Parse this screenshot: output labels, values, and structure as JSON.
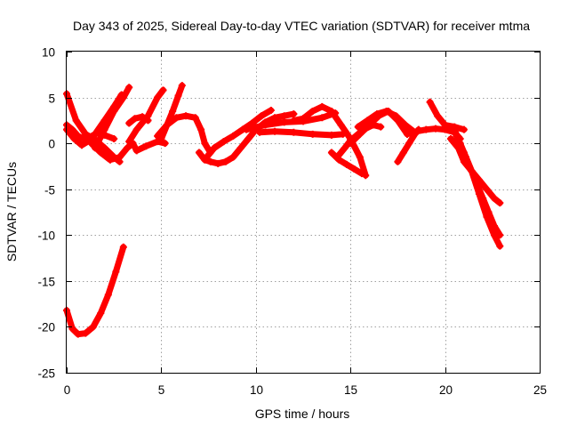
{
  "chart_data": {
    "type": "scatter",
    "title": "Day 343 of 2025, Sidereal Day-to-day VTEC variation (SDTVAR) for receiver mtma",
    "xlabel": "GPS time / hours",
    "ylabel": "SDTVAR / TECUs",
    "xlim": [
      0,
      25
    ],
    "ylim": [
      -25,
      10
    ],
    "xticks": [
      0,
      5,
      10,
      15,
      20,
      25
    ],
    "yticks": [
      -25,
      -20,
      -15,
      -10,
      -5,
      0,
      5,
      10
    ],
    "x_tick_labels": [
      "0",
      "5",
      "10",
      "15",
      "20",
      "25"
    ],
    "y_tick_labels": [
      "-25",
      "-20",
      "-15",
      "-10",
      "-5",
      "0",
      "5",
      "10"
    ],
    "grid": true,
    "marker_color": "#ff0000",
    "series": [
      {
        "name": "arc-1",
        "x": [
          0.0,
          0.5,
          1.0,
          1.5,
          2.0,
          2.5,
          2.8
        ],
        "y": [
          5.4,
          2.5,
          1.0,
          0.4,
          -0.5,
          -1.5,
          -2.0
        ]
      },
      {
        "name": "arc-2",
        "x": [
          0.0,
          0.3,
          0.6,
          1.0,
          1.5,
          2.0,
          2.5,
          2.9
        ],
        "y": [
          2.0,
          1.5,
          0.8,
          0.4,
          1.0,
          2.5,
          4.0,
          5.3
        ]
      },
      {
        "name": "arc-3",
        "x": [
          0.0,
          0.4,
          0.8,
          1.2,
          1.6,
          2.0,
          2.5
        ],
        "y": [
          1.5,
          0.5,
          -0.2,
          0.3,
          1.2,
          0.9,
          0.5
        ]
      },
      {
        "name": "arc-4",
        "x": [
          1.3,
          1.8,
          2.3,
          2.8,
          3.2,
          3.5,
          3.7,
          4.2,
          4.8,
          5.2
        ],
        "y": [
          0.0,
          -1.0,
          -1.8,
          -1.5,
          -0.5,
          0.0,
          -0.8,
          -0.3,
          0.2,
          0.0
        ]
      },
      {
        "name": "arc-5",
        "x": [
          1.5,
          2.0,
          2.5,
          3.0,
          3.3
        ],
        "y": [
          -0.5,
          1.5,
          3.5,
          5.0,
          6.1
        ]
      },
      {
        "name": "arc-6",
        "x": [
          3.3,
          3.7,
          4.3,
          4.8,
          5.1
        ],
        "y": [
          0.2,
          1.5,
          3.0,
          5.0,
          5.8
        ]
      },
      {
        "name": "arc-7",
        "x": [
          3.3,
          3.6,
          4.0,
          4.3
        ],
        "y": [
          2.2,
          2.7,
          2.9,
          2.5
        ]
      },
      {
        "name": "arc-8",
        "x": [
          5.0,
          5.3,
          5.6,
          5.9,
          6.1
        ],
        "y": [
          0.5,
          2.0,
          3.5,
          5.2,
          6.3
        ]
      },
      {
        "name": "arc-9",
        "x": [
          4.8,
          5.3,
          5.8,
          6.3,
          6.8,
          7.1,
          7.3,
          7.6
        ],
        "y": [
          0.8,
          2.0,
          2.8,
          3.0,
          2.8,
          1.5,
          0.0,
          -1.0
        ]
      },
      {
        "name": "arc-10",
        "x": [
          7.0,
          7.3,
          7.6,
          8.0,
          8.4,
          8.8,
          9.2,
          9.6,
          10.0,
          10.5,
          11.0,
          11.5,
          12.0
        ],
        "y": [
          -1.0,
          -1.8,
          -2.0,
          -2.2,
          -2.0,
          -1.5,
          -0.5,
          0.5,
          1.5,
          2.3,
          2.8,
          3.0,
          3.2
        ]
      },
      {
        "name": "arc-11",
        "x": [
          7.4,
          7.8,
          8.3,
          8.8,
          9.3,
          9.8,
          10.3,
          10.8
        ],
        "y": [
          -1.5,
          -0.5,
          0.2,
          0.8,
          1.5,
          2.2,
          3.0,
          3.6
        ]
      },
      {
        "name": "arc-12",
        "x": [
          9.5,
          10.5,
          11.5,
          12.5,
          13.5,
          14.2
        ],
        "y": [
          1.5,
          2.0,
          2.3,
          2.4,
          2.8,
          3.3
        ]
      },
      {
        "name": "arc-13",
        "x": [
          10.2,
          11.0,
          12.0,
          13.0,
          14.0,
          14.6
        ],
        "y": [
          1.2,
          1.3,
          1.2,
          1.0,
          0.9,
          1.0
        ]
      },
      {
        "name": "arc-14",
        "x": [
          12.0,
          12.5,
          13.0,
          13.5,
          14.0,
          14.5,
          15.0,
          15.5,
          15.8
        ],
        "y": [
          2.5,
          2.7,
          3.5,
          4.0,
          3.5,
          2.0,
          0.5,
          -1.5,
          -3.5
        ]
      },
      {
        "name": "arc-15",
        "x": [
          14.0,
          14.4,
          14.8,
          15.2,
          15.6
        ],
        "y": [
          -1.0,
          -1.8,
          -2.3,
          -2.8,
          -3.3
        ]
      },
      {
        "name": "arc-16",
        "x": [
          14.3,
          14.7,
          15.0,
          15.4,
          15.8,
          16.2,
          16.6
        ],
        "y": [
          -1.5,
          -0.5,
          0.3,
          1.0,
          1.6,
          2.0,
          1.8
        ]
      },
      {
        "name": "arc-17",
        "x": [
          15.0,
          15.5,
          16.0,
          16.5,
          17.0,
          17.5,
          18.0
        ],
        "y": [
          0.0,
          1.0,
          2.0,
          3.0,
          3.5,
          2.5,
          1.0
        ]
      },
      {
        "name": "arc-18",
        "x": [
          15.4,
          15.9,
          16.4,
          16.9,
          17.4,
          17.9,
          18.4
        ],
        "y": [
          1.8,
          2.5,
          3.2,
          3.5,
          3.0,
          2.0,
          1.2
        ]
      },
      {
        "name": "arc-19",
        "x": [
          17.5,
          17.8,
          18.1,
          18.4,
          18.6
        ],
        "y": [
          -2.0,
          -1.0,
          0.0,
          1.0,
          1.5
        ]
      },
      {
        "name": "arc-20",
        "x": [
          18.0,
          18.5,
          19.0,
          19.5,
          20.0,
          20.5,
          20.8
        ],
        "y": [
          1.0,
          1.3,
          1.5,
          1.6,
          1.5,
          1.2,
          0.5
        ]
      },
      {
        "name": "arc-21",
        "x": [
          19.2,
          19.6,
          20.0,
          20.5,
          21.0
        ],
        "y": [
          4.5,
          3.0,
          2.0,
          1.8,
          1.5
        ]
      },
      {
        "name": "arc-22",
        "x": [
          20.3,
          20.7,
          21.0,
          21.4,
          21.8,
          22.2,
          22.6,
          22.9
        ],
        "y": [
          0.5,
          -0.5,
          -2.0,
          -3.0,
          -4.0,
          -5.0,
          -6.0,
          -6.5
        ]
      },
      {
        "name": "arc-23",
        "x": [
          20.5,
          20.8,
          21.1,
          21.4,
          21.7,
          22.0,
          22.3,
          22.6,
          22.9
        ],
        "y": [
          1.5,
          0.0,
          -1.5,
          -3.0,
          -4.5,
          -6.0,
          -7.5,
          -9.0,
          -10.0
        ]
      },
      {
        "name": "arc-24",
        "x": [
          20.6,
          21.0,
          21.4,
          21.8,
          22.2,
          22.6,
          22.9
        ],
        "y": [
          0.8,
          -1.0,
          -3.0,
          -5.5,
          -8.0,
          -10.0,
          -11.2
        ]
      },
      {
        "name": "arc-25",
        "x": [
          0.0,
          0.3,
          0.6,
          1.0,
          1.4,
          1.8,
          2.2,
          2.6,
          3.0
        ],
        "y": [
          -18.2,
          -20.2,
          -20.8,
          -20.7,
          -20.0,
          -18.5,
          -16.5,
          -14.0,
          -11.3
        ]
      }
    ]
  }
}
